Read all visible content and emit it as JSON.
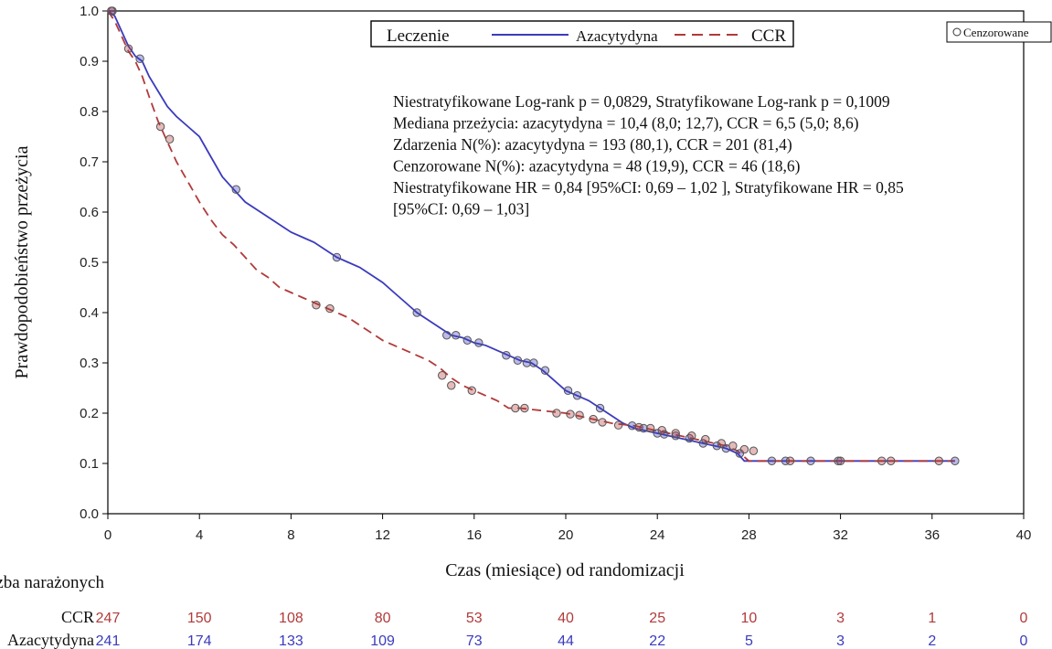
{
  "chart_data": {
    "type": "line",
    "subtype": "kaplan-meier",
    "title": "",
    "xlabel": "Czas (miesiące) od randomizacji",
    "ylabel": "Prawdopodobieństwo przeżycia",
    "xlim": [
      0,
      40
    ],
    "ylim": [
      0,
      1.0
    ],
    "x_ticks": [
      "0",
      "4",
      "8",
      "12",
      "16",
      "20",
      "24",
      "28",
      "32",
      "36",
      "40"
    ],
    "y_ticks": [
      "0.0",
      "0.1",
      "0.2",
      "0.3",
      "0.4",
      "0.5",
      "0.6",
      "0.7",
      "0.8",
      "0.9",
      "1.0"
    ],
    "grid": false,
    "legend": {
      "placement": "top",
      "title": "Leczenie",
      "entries": [
        "Azacytydyna",
        "CCR"
      ]
    },
    "censor_legend": {
      "placement": "top-right",
      "label": "Cenzorowane"
    },
    "annotation_lines": [
      "Niestratyfikowane Log-rank p = 0,0829, Stratyfikowane Log-rank p = 0,1009",
      "Mediana przeżycia: azacytydyna = 10,4 (8,0; 12,7), CCR = 6,5 (5,0; 8,6)",
      "Zdarzenia N(%): azacytydyna = 193 (80,1), CCR = 201 (81,4)",
      "Cenzorowane N(%): azacytydyna = 48 (19,9), CCR = 46 (18,6)",
      "Niestratyfikowane HR = 0,84 [95%CI: 0,69 – 1,02 ], Stratyfikowane HR = 0,85",
      "[95%CI: 0,69 – 1,03]"
    ],
    "series": [
      {
        "name": "Azacytydyna",
        "color": "#3b3bbd",
        "dash": "solid",
        "points": [
          [
            0,
            1.0
          ],
          [
            0.3,
            0.99
          ],
          [
            0.6,
            0.96
          ],
          [
            0.9,
            0.93
          ],
          [
            1.2,
            0.91
          ],
          [
            1.5,
            0.9
          ],
          [
            1.8,
            0.87
          ],
          [
            2.2,
            0.84
          ],
          [
            2.6,
            0.81
          ],
          [
            3.0,
            0.79
          ],
          [
            3.5,
            0.77
          ],
          [
            4.0,
            0.75
          ],
          [
            4.5,
            0.71
          ],
          [
            5.0,
            0.67
          ],
          [
            5.5,
            0.645
          ],
          [
            6.0,
            0.62
          ],
          [
            6.5,
            0.605
          ],
          [
            7.0,
            0.59
          ],
          [
            7.5,
            0.575
          ],
          [
            8.0,
            0.56
          ],
          [
            8.5,
            0.55
          ],
          [
            9.0,
            0.54
          ],
          [
            9.5,
            0.525
          ],
          [
            10.0,
            0.51
          ],
          [
            10.5,
            0.5
          ],
          [
            11.0,
            0.49
          ],
          [
            11.5,
            0.475
          ],
          [
            12.0,
            0.46
          ],
          [
            12.5,
            0.44
          ],
          [
            13.0,
            0.42
          ],
          [
            13.5,
            0.4
          ],
          [
            14.0,
            0.385
          ],
          [
            14.5,
            0.37
          ],
          [
            15.0,
            0.355
          ],
          [
            15.5,
            0.35
          ],
          [
            16.0,
            0.34
          ],
          [
            16.5,
            0.335
          ],
          [
            17.0,
            0.325
          ],
          [
            17.5,
            0.315
          ],
          [
            18.0,
            0.305
          ],
          [
            18.5,
            0.3
          ],
          [
            19.0,
            0.285
          ],
          [
            19.5,
            0.265
          ],
          [
            20.0,
            0.245
          ],
          [
            20.5,
            0.235
          ],
          [
            21.0,
            0.225
          ],
          [
            21.5,
            0.21
          ],
          [
            22.0,
            0.195
          ],
          [
            22.5,
            0.18
          ],
          [
            23.0,
            0.17
          ],
          [
            24.0,
            0.16
          ],
          [
            25.0,
            0.15
          ],
          [
            26.0,
            0.14
          ],
          [
            27.0,
            0.13
          ],
          [
            27.5,
            0.12
          ],
          [
            27.8,
            0.105
          ],
          [
            29.0,
            0.105
          ],
          [
            31.0,
            0.105
          ],
          [
            33.0,
            0.105
          ],
          [
            35.0,
            0.105
          ],
          [
            37.0,
            0.105
          ]
        ],
        "censored": [
          [
            0.2,
            1.0
          ],
          [
            1.4,
            0.905
          ],
          [
            5.6,
            0.645
          ],
          [
            10.0,
            0.51
          ],
          [
            13.5,
            0.4
          ],
          [
            14.8,
            0.355
          ],
          [
            15.2,
            0.355
          ],
          [
            15.7,
            0.345
          ],
          [
            16.2,
            0.34
          ],
          [
            17.4,
            0.315
          ],
          [
            17.9,
            0.305
          ],
          [
            18.3,
            0.3
          ],
          [
            18.6,
            0.3
          ],
          [
            19.1,
            0.285
          ],
          [
            20.1,
            0.245
          ],
          [
            20.5,
            0.235
          ],
          [
            21.5,
            0.21
          ],
          [
            22.9,
            0.175
          ],
          [
            23.4,
            0.17
          ],
          [
            24.0,
            0.16
          ],
          [
            24.3,
            0.158
          ],
          [
            24.8,
            0.155
          ],
          [
            25.4,
            0.15
          ],
          [
            26.0,
            0.14
          ],
          [
            26.6,
            0.135
          ],
          [
            27.0,
            0.13
          ],
          [
            27.6,
            0.12
          ],
          [
            29.0,
            0.105
          ],
          [
            29.6,
            0.105
          ],
          [
            30.7,
            0.105
          ],
          [
            31.9,
            0.105
          ],
          [
            37.0,
            0.105
          ]
        ]
      },
      {
        "name": "CCR",
        "color": "#b23a3a",
        "dash": "dashed",
        "points": [
          [
            0,
            1.0
          ],
          [
            0.3,
            0.98
          ],
          [
            0.6,
            0.95
          ],
          [
            0.9,
            0.92
          ],
          [
            1.2,
            0.9
          ],
          [
            1.5,
            0.87
          ],
          [
            1.8,
            0.83
          ],
          [
            2.2,
            0.78
          ],
          [
            2.6,
            0.74
          ],
          [
            3.0,
            0.7
          ],
          [
            3.5,
            0.66
          ],
          [
            4.0,
            0.62
          ],
          [
            4.5,
            0.585
          ],
          [
            5.0,
            0.555
          ],
          [
            5.5,
            0.535
          ],
          [
            6.0,
            0.51
          ],
          [
            6.5,
            0.485
          ],
          [
            7.0,
            0.47
          ],
          [
            7.5,
            0.45
          ],
          [
            8.0,
            0.44
          ],
          [
            8.5,
            0.43
          ],
          [
            9.0,
            0.42
          ],
          [
            9.5,
            0.41
          ],
          [
            10.0,
            0.4
          ],
          [
            10.5,
            0.39
          ],
          [
            11.0,
            0.375
          ],
          [
            11.5,
            0.36
          ],
          [
            12.0,
            0.345
          ],
          [
            12.5,
            0.335
          ],
          [
            13.0,
            0.325
          ],
          [
            13.5,
            0.315
          ],
          [
            14.0,
            0.305
          ],
          [
            14.5,
            0.29
          ],
          [
            15.0,
            0.27
          ],
          [
            15.5,
            0.255
          ],
          [
            16.0,
            0.245
          ],
          [
            16.5,
            0.235
          ],
          [
            17.0,
            0.225
          ],
          [
            17.5,
            0.21
          ],
          [
            18.0,
            0.21
          ],
          [
            19.0,
            0.205
          ],
          [
            20.0,
            0.2
          ],
          [
            21.0,
            0.19
          ],
          [
            22.0,
            0.18
          ],
          [
            23.0,
            0.175
          ],
          [
            24.0,
            0.165
          ],
          [
            25.0,
            0.155
          ],
          [
            26.0,
            0.145
          ],
          [
            27.0,
            0.135
          ],
          [
            27.5,
            0.125
          ],
          [
            28.0,
            0.105
          ],
          [
            29.0,
            0.105
          ],
          [
            31.0,
            0.105
          ],
          [
            33.0,
            0.105
          ],
          [
            35.0,
            0.105
          ],
          [
            37.0,
            0.105
          ]
        ],
        "censored": [
          [
            0.15,
            1.0
          ],
          [
            0.9,
            0.925
          ],
          [
            2.3,
            0.77
          ],
          [
            2.7,
            0.745
          ],
          [
            9.1,
            0.415
          ],
          [
            9.7,
            0.408
          ],
          [
            14.6,
            0.275
          ],
          [
            15.0,
            0.255
          ],
          [
            15.9,
            0.245
          ],
          [
            17.8,
            0.21
          ],
          [
            18.2,
            0.21
          ],
          [
            19.6,
            0.2
          ],
          [
            20.2,
            0.198
          ],
          [
            20.6,
            0.196
          ],
          [
            21.2,
            0.188
          ],
          [
            21.6,
            0.182
          ],
          [
            22.3,
            0.176
          ],
          [
            23.2,
            0.172
          ],
          [
            23.7,
            0.17
          ],
          [
            24.2,
            0.166
          ],
          [
            24.8,
            0.16
          ],
          [
            25.5,
            0.155
          ],
          [
            26.1,
            0.148
          ],
          [
            26.8,
            0.14
          ],
          [
            27.3,
            0.135
          ],
          [
            27.8,
            0.128
          ],
          [
            28.2,
            0.125
          ],
          [
            29.8,
            0.105
          ],
          [
            32.0,
            0.105
          ],
          [
            33.8,
            0.105
          ],
          [
            34.2,
            0.105
          ],
          [
            36.3,
            0.105
          ]
        ]
      }
    ],
    "risk_table": {
      "title": "Liczba narażonych",
      "x": [
        0,
        4,
        8,
        12,
        16,
        20,
        24,
        28,
        32,
        36,
        40
      ],
      "rows": [
        {
          "label": "CCR",
          "color": "#b23a3a",
          "values": [
            "247",
            "150",
            "108",
            "80",
            "53",
            "40",
            "25",
            "10",
            "3",
            "1",
            "0"
          ]
        },
        {
          "label": "Azacytydyna",
          "color": "#3b3bbd",
          "values": [
            "241",
            "174",
            "133",
            "109",
            "73",
            "44",
            "22",
            "5",
            "3",
            "2",
            "0"
          ]
        }
      ]
    }
  }
}
